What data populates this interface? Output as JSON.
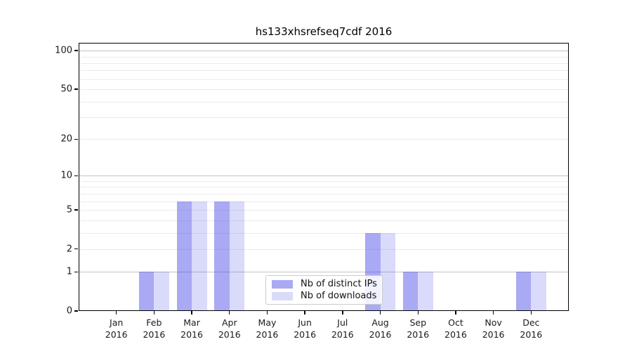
{
  "figure": {
    "title": "hs133xhsrefseq7cdf 2016",
    "background": "#ffffff"
  },
  "chart_data": {
    "type": "bar",
    "title": "hs133xhsrefseq7cdf 2016",
    "categories": [
      "Jan 2016",
      "Feb 2016",
      "Mar 2016",
      "Apr 2016",
      "May 2016",
      "Jun 2016",
      "Jul 2016",
      "Aug 2016",
      "Sep 2016",
      "Oct 2016",
      "Nov 2016",
      "Dec 2016"
    ],
    "x_tick_top_lines": [
      "Jan",
      "Feb",
      "Mar",
      "Apr",
      "May",
      "Jun",
      "Jul",
      "Aug",
      "Sep",
      "Oct",
      "Nov",
      "Dec"
    ],
    "x_tick_bottom_line": "2016",
    "series": [
      {
        "name": "Nb of distinct IPs",
        "color": "rgba(64,64,231,0.45)",
        "values": [
          0,
          1,
          6,
          6,
          0,
          0,
          0,
          3,
          1,
          0,
          0,
          1
        ]
      },
      {
        "name": "Nb of downloads",
        "color": "rgba(70,70,230,0.2)",
        "values": [
          0,
          1,
          6,
          6,
          0,
          0,
          0,
          3,
          1,
          0,
          0,
          1
        ]
      }
    ],
    "xlabel": "",
    "ylabel": "",
    "yscale": "log1p",
    "ylim": [
      0,
      115
    ],
    "yticks": [
      0,
      1,
      2,
      5,
      10,
      20,
      50,
      100
    ],
    "grid": {
      "orientation": "horizontal",
      "major_gridline_values": [
        1,
        10,
        100
      ],
      "minor_gridline_values": [
        2,
        3,
        4,
        5,
        6,
        7,
        8,
        9,
        20,
        30,
        40,
        50,
        60,
        70,
        80,
        90
      ],
      "major_color": "#c3c3c3",
      "minor_color": "#ebebeb"
    },
    "legend": {
      "position": "lower center inside plot",
      "entries": [
        "Nb of distinct IPs",
        "Nb of downloads"
      ]
    }
  },
  "colors": {
    "axis_spine": "#000000",
    "tick_text": "#1a1a1a",
    "bar_distinct_ips": "rgba(64,64,231,0.45)",
    "bar_downloads": "rgba(70,70,230,0.2)",
    "legend_border": "#cccccc"
  }
}
